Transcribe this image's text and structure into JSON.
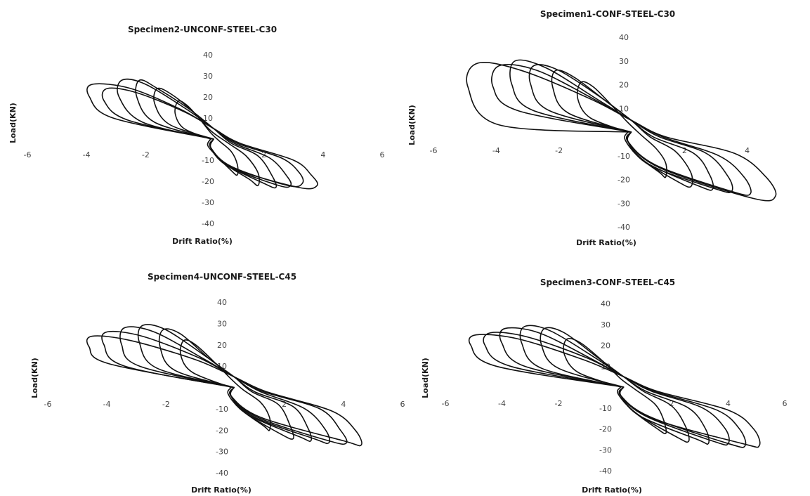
{
  "chart_data": [
    {
      "type": "line",
      "title": "Specimen2-UNCONF-STEEL-C30",
      "xlabel": "Drift Ratio(%)",
      "ylabel": "Load(KN)",
      "xlim": [
        -6,
        6
      ],
      "ylim": [
        -40,
        40
      ],
      "x_ticks": [
        "-6",
        "-4",
        "-2",
        "2",
        "4",
        "6"
      ],
      "y_ticks": [
        "40",
        "30",
        "20",
        "10",
        "-10",
        "-20",
        "-30",
        "-40"
      ],
      "grid": false,
      "series": [
        {
          "x": [
            0.3,
            -3.1,
            -3.9,
            -3.8,
            -2.5,
            -0.8,
            0.3,
            1.2,
            3.0,
            3.6,
            3.8,
            3.2,
            1.0,
            0.2
          ],
          "y": [
            0,
            10,
            20,
            26,
            24,
            14,
            5,
            -2,
            -10,
            -17,
            -22,
            -23,
            -14,
            -4
          ]
        },
        {
          "x": [
            0.3,
            -2.6,
            -3.4,
            -3.3,
            -2.3,
            -0.7,
            0.3,
            1.1,
            2.6,
            3.2,
            3.3,
            2.8,
            0.9,
            0.2
          ],
          "y": [
            0,
            9,
            18,
            24,
            22,
            13,
            5,
            -2,
            -9,
            -16,
            -21,
            -22,
            -13,
            -4
          ]
        },
        {
          "x": [
            0.3,
            -2.1,
            -2.9,
            -2.8,
            -2.0,
            -0.6,
            0.3,
            1.0,
            2.2,
            2.8,
            2.9,
            2.5,
            0.8,
            0.2
          ],
          "y": [
            0,
            8,
            20,
            28,
            26,
            14,
            5,
            -2,
            -9,
            -18,
            -22,
            -22,
            -13,
            -4
          ]
        },
        {
          "x": [
            0.3,
            -1.7,
            -2.3,
            -2.2,
            -1.6,
            -0.5,
            0.3,
            0.9,
            1.8,
            2.3,
            2.4,
            2.0,
            0.7,
            0.2
          ],
          "y": [
            0,
            8,
            20,
            28,
            24,
            14,
            5,
            -2,
            -8,
            -18,
            -23,
            -21,
            -12,
            -4
          ]
        },
        {
          "x": [
            0.3,
            -1.2,
            -1.7,
            -1.6,
            -1.1,
            -0.4,
            0.2,
            0.8,
            1.4,
            1.8,
            1.8,
            1.5,
            0.6,
            0.2
          ],
          "y": [
            0,
            7,
            17,
            24,
            21,
            13,
            4,
            -2,
            -8,
            -16,
            -22,
            -19,
            -11,
            -4
          ]
        },
        {
          "x": [
            0.2,
            -0.7,
            -1.0,
            -0.9,
            -0.6,
            -0.2,
            0.2,
            0.5,
            0.9,
            1.1,
            1.1,
            0.9,
            0.4,
            0.1
          ],
          "y": [
            0,
            5,
            12,
            18,
            16,
            10,
            3,
            -1,
            -6,
            -12,
            -17,
            -15,
            -8,
            -3
          ]
        }
      ]
    },
    {
      "type": "line",
      "title": "Specimen1-CONF-STEEL-C30",
      "xlabel": "Drift Ratio(%)",
      "ylabel": "Load(KN)",
      "xlim": [
        -6,
        6
      ],
      "ylim": [
        -40,
        40
      ],
      "x_ticks": [
        "-6",
        "-4",
        "-2",
        "2",
        "4"
      ],
      "y_ticks": [
        "40",
        "30",
        "20",
        "10",
        "-10",
        "-20",
        "-30",
        "-40"
      ],
      "grid": false,
      "series": [
        {
          "x": [
            0.3,
            -3.9,
            -4.9,
            -4.6,
            -3.2,
            -1.0,
            0.3,
            1.4,
            3.6,
            4.6,
            4.9,
            4.2,
            1.2,
            0.2
          ],
          "y": [
            0,
            3,
            19,
            29,
            26,
            14,
            5,
            -2,
            -9,
            -19,
            -27,
            -28,
            -15,
            -4
          ]
        },
        {
          "x": [
            0.3,
            -3.3,
            -4.1,
            -3.9,
            -2.7,
            -0.9,
            0.3,
            1.3,
            3.1,
            3.9,
            4.1,
            3.5,
            1.1,
            0.2
          ],
          "y": [
            0,
            9,
            19,
            28,
            26,
            14,
            5,
            -2,
            -10,
            -19,
            -26,
            -25,
            -14,
            -4
          ]
        },
        {
          "x": [
            0.3,
            -2.8,
            -3.5,
            -3.4,
            -2.4,
            -0.8,
            0.3,
            1.2,
            2.7,
            3.4,
            3.5,
            3.0,
            0.9,
            0.2
          ],
          "y": [
            0,
            9,
            20,
            30,
            27,
            14,
            5,
            -2,
            -9,
            -19,
            -25,
            -24,
            -14,
            -4
          ]
        },
        {
          "x": [
            0.3,
            -2.3,
            -2.9,
            -2.8,
            -2.0,
            -0.6,
            0.3,
            1.0,
            2.3,
            2.8,
            2.9,
            2.5,
            0.8,
            0.2
          ],
          "y": [
            0,
            9,
            20,
            28,
            26,
            14,
            5,
            -2,
            -9,
            -18,
            -24,
            -23,
            -13,
            -4
          ]
        },
        {
          "x": [
            0.3,
            -1.7,
            -2.2,
            -2.1,
            -1.5,
            -0.5,
            0.3,
            0.9,
            1.7,
            2.2,
            2.2,
            1.8,
            0.7,
            0.2
          ],
          "y": [
            0,
            8,
            19,
            26,
            23,
            13,
            5,
            -2,
            -8,
            -17,
            -23,
            -21,
            -12,
            -4
          ]
        },
        {
          "x": [
            0.2,
            -1.0,
            -1.4,
            -1.3,
            -0.9,
            -0.3,
            0.2,
            0.6,
            1.1,
            1.4,
            1.4,
            1.2,
            0.5,
            0.1
          ],
          "y": [
            0,
            6,
            14,
            21,
            19,
            11,
            4,
            -1,
            -7,
            -13,
            -19,
            -17,
            -10,
            -3
          ]
        }
      ]
    },
    {
      "type": "line",
      "title": "Specimen4-UNCONF-STEEL-C45",
      "xlabel": "Drift Ratio(%)",
      "ylabel": "Load(KN)",
      "xlim": [
        -6,
        6
      ],
      "ylim": [
        -40,
        40
      ],
      "x_ticks": [
        "-6",
        "-4",
        "-2",
        "2",
        "4",
        "6"
      ],
      "y_ticks": [
        "40",
        "30",
        "20",
        "10",
        "-10",
        "-20",
        "-30",
        "-40"
      ],
      "grid": false,
      "series": [
        {
          "x": [
            0.3,
            -3.9,
            -4.6,
            -4.5,
            -3.2,
            -1.0,
            0.3,
            1.4,
            3.6,
            4.4,
            4.6,
            4.0,
            1.2,
            0.2
          ],
          "y": [
            0,
            11,
            19,
            24,
            22,
            13,
            5,
            -2,
            -11,
            -20,
            -27,
            -25,
            -14,
            -4
          ]
        },
        {
          "x": [
            0.3,
            -3.4,
            -4.1,
            -4.0,
            -2.8,
            -0.9,
            0.3,
            1.3,
            3.2,
            3.9,
            4.1,
            3.5,
            1.1,
            0.2
          ],
          "y": [
            0,
            10,
            20,
            26,
            24,
            14,
            5,
            -2,
            -10,
            -20,
            -26,
            -25,
            -14,
            -4
          ]
        },
        {
          "x": [
            0.3,
            -2.9,
            -3.5,
            -3.4,
            -2.4,
            -0.8,
            0.3,
            1.2,
            2.7,
            3.4,
            3.5,
            3.0,
            1.0,
            0.2
          ],
          "y": [
            0,
            10,
            20,
            28,
            26,
            14,
            5,
            -2,
            -10,
            -20,
            -26,
            -24,
            -14,
            -4
          ]
        },
        {
          "x": [
            0.3,
            -2.3,
            -2.9,
            -2.8,
            -2.0,
            -0.6,
            0.3,
            1.0,
            2.3,
            2.8,
            2.9,
            2.5,
            0.8,
            0.2
          ],
          "y": [
            0,
            9,
            21,
            29,
            27,
            14,
            5,
            -2,
            -9,
            -19,
            -25,
            -23,
            -13,
            -4
          ]
        },
        {
          "x": [
            0.3,
            -1.7,
            -2.2,
            -2.1,
            -1.5,
            -0.5,
            0.3,
            0.9,
            1.8,
            2.2,
            2.3,
            1.9,
            0.7,
            0.2
          ],
          "y": [
            0,
            8,
            19,
            27,
            25,
            13,
            5,
            -2,
            -8,
            -18,
            -24,
            -22,
            -12,
            -4
          ]
        },
        {
          "x": [
            0.2,
            -1.1,
            -1.5,
            -1.4,
            -1.0,
            -0.3,
            0.2,
            0.6,
            1.2,
            1.5,
            1.5,
            1.3,
            0.5,
            0.1
          ],
          "y": [
            0,
            7,
            15,
            22,
            20,
            11,
            4,
            -1,
            -7,
            -14,
            -20,
            -18,
            -10,
            -3
          ]
        }
      ]
    },
    {
      "type": "line",
      "title": "Specimen3-CONF-STEEL-C45",
      "xlabel": "Drift Ratio(%)",
      "ylabel": "Load(KN)",
      "xlim": [
        -6,
        6
      ],
      "ylim": [
        -40,
        40
      ],
      "x_ticks": [
        "-6",
        "-4",
        "-2",
        "2",
        "4",
        "6"
      ],
      "y_ticks": [
        "40",
        "30",
        "20",
        "10",
        "-10",
        "-20",
        "-30",
        "-40"
      ],
      "grid": false,
      "series": [
        {
          "x": [
            0.3,
            -4.2,
            -5.1,
            -4.9,
            -3.4,
            -1.1,
            0.3,
            1.5,
            4.0,
            4.9,
            5.1,
            4.5,
            1.3,
            0.2
          ],
          "y": [
            0,
            10,
            20,
            25,
            23,
            13,
            5,
            -2,
            -11,
            -20,
            -28,
            -27,
            -15,
            -4
          ]
        },
        {
          "x": [
            0.3,
            -3.7,
            -4.6,
            -4.4,
            -3.1,
            -1.0,
            0.3,
            1.4,
            3.6,
            4.4,
            4.6,
            4.0,
            1.2,
            0.2
          ],
          "y": [
            0,
            10,
            20,
            26,
            24,
            14,
            5,
            -2,
            -11,
            -20,
            -28,
            -27,
            -14,
            -4
          ]
        },
        {
          "x": [
            0.3,
            -3.2,
            -4.0,
            -3.9,
            -2.7,
            -0.9,
            0.3,
            1.3,
            3.1,
            3.9,
            4.0,
            3.5,
            1.1,
            0.2
          ],
          "y": [
            0,
            10,
            21,
            28,
            26,
            14,
            5,
            -2,
            -10,
            -20,
            -27,
            -26,
            -14,
            -4
          ]
        },
        {
          "x": [
            0.3,
            -2.6,
            -3.3,
            -3.2,
            -2.3,
            -0.7,
            0.3,
            1.1,
            2.6,
            3.2,
            3.3,
            2.9,
            0.9,
            0.2
          ],
          "y": [
            0,
            9,
            21,
            29,
            27,
            14,
            5,
            -2,
            -10,
            -20,
            -27,
            -25,
            -14,
            -4
          ]
        },
        {
          "x": [
            0.3,
            -2.0,
            -2.6,
            -2.5,
            -1.8,
            -0.6,
            0.3,
            1.0,
            2.0,
            2.5,
            2.6,
            2.2,
            0.8,
            0.2
          ],
          "y": [
            0,
            9,
            20,
            28,
            26,
            14,
            5,
            -2,
            -9,
            -19,
            -26,
            -24,
            -13,
            -4
          ]
        },
        {
          "x": [
            0.2,
            -1.3,
            -1.8,
            -1.7,
            -1.2,
            -0.4,
            0.2,
            0.7,
            1.4,
            1.7,
            1.8,
            1.5,
            0.6,
            0.1
          ],
          "y": [
            0,
            7,
            16,
            23,
            21,
            12,
            4,
            -1,
            -8,
            -15,
            -22,
            -20,
            -11,
            -3
          ]
        }
      ]
    }
  ]
}
